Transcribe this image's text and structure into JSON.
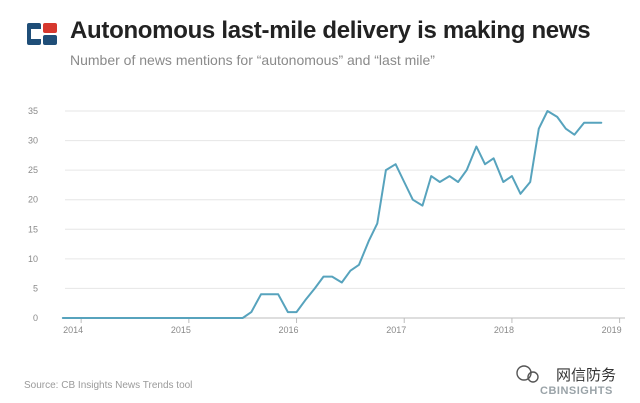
{
  "header": {
    "logo_name": "CB Insights logo",
    "title": "Autonomous last-mile delivery is making news",
    "subtitle": "Number of news mentions for “autonomous” and “last mile”"
  },
  "footer": {
    "source": "Source: CB Insights News Trends tool"
  },
  "watermark": {
    "brand_text": "网信防务",
    "cb_text": "CBINSIGHTS"
  },
  "colors": {
    "line": "#57a3bd",
    "grid": "#e6e6e6",
    "axis_text": "#8a8a8a",
    "logo_blue": "#1f4e78",
    "logo_red": "#d6382e"
  },
  "chart_data": {
    "type": "line",
    "title": "Autonomous last-mile delivery is making news",
    "xlabel": "",
    "ylabel": "",
    "xlim": [
      2013.85,
      2019.05
    ],
    "ylim": [
      0,
      35
    ],
    "y_ticks": [
      0,
      5,
      10,
      15,
      20,
      25,
      30,
      35
    ],
    "x_ticks": [
      {
        "value": 2014,
        "label": "2014"
      },
      {
        "value": 2015,
        "label": "2015"
      },
      {
        "value": 2016,
        "label": "2016"
      },
      {
        "value": 2017,
        "label": "2017"
      },
      {
        "value": 2018,
        "label": "2018"
      },
      {
        "value": 2019,
        "label": "2019"
      }
    ],
    "grid": "horizontal",
    "series": [
      {
        "name": "News mentions",
        "x": [
          2013.83,
          2013.92,
          2014.0,
          2014.08,
          2014.17,
          2014.25,
          2014.33,
          2014.42,
          2014.5,
          2014.58,
          2014.67,
          2014.75,
          2014.83,
          2014.92,
          2015.0,
          2015.08,
          2015.17,
          2015.25,
          2015.33,
          2015.42,
          2015.5,
          2015.58,
          2015.67,
          2015.75,
          2015.83,
          2015.92,
          2016.0,
          2016.08,
          2016.17,
          2016.25,
          2016.33,
          2016.42,
          2016.5,
          2016.58,
          2016.67,
          2016.75,
          2016.83,
          2016.92,
          2017.0,
          2017.08,
          2017.17,
          2017.25,
          2017.33,
          2017.42,
          2017.5,
          2017.58,
          2017.67,
          2017.75,
          2017.83,
          2017.92,
          2018.0,
          2018.08,
          2018.17,
          2018.25,
          2018.33,
          2018.42,
          2018.5,
          2018.58,
          2018.67,
          2018.75,
          2018.83
        ],
        "values": [
          0,
          0,
          0,
          0,
          0,
          0,
          0,
          0,
          0,
          0,
          0,
          0,
          0,
          0,
          0,
          0,
          0,
          0,
          0,
          0,
          0,
          1,
          4,
          4,
          4,
          1,
          1,
          3,
          5,
          7,
          7,
          6,
          8,
          9,
          13,
          16,
          25,
          26,
          23,
          20,
          19,
          24,
          23,
          24,
          23,
          25,
          29,
          26,
          27,
          23,
          24,
          21,
          23,
          32,
          35,
          34,
          32,
          31,
          33,
          33,
          33
        ]
      }
    ]
  }
}
